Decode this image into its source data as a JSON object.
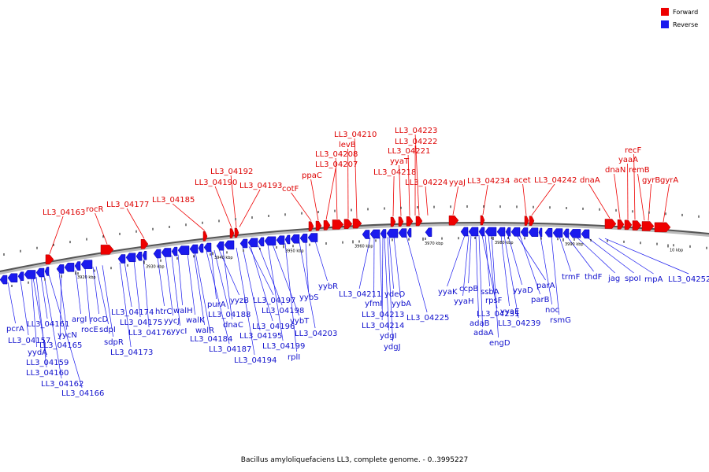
{
  "legend": [
    {
      "label": "Forward",
      "color": "#ee0000"
    },
    {
      "label": "Reverse",
      "color": "#1a1aee"
    }
  ],
  "footer": "Bacillus amyloliquefaciens LL3, complete genome. - 0..3995227",
  "colors": {
    "forward": "#ee0000",
    "reverse": "#1a1aee",
    "backbone": "#666666"
  },
  "ticks": [
    "3920 kbp",
    "3930 kbp",
    "3940 kbp",
    "3950 kbp",
    "3960 kbp",
    "3970 kbp",
    "3980 kbp",
    "3990 kbp",
    "10 kbp"
  ],
  "forward_labels": [
    "LL3_04163",
    "rocR",
    "LL3_04177",
    "LL3_04185",
    "LL3_04190",
    "LL3_04192",
    "LL3_04193",
    "cotF",
    "ppaC",
    "LL3_04207",
    "LL3_04208",
    "levB",
    "LL3_04210",
    "LL3_04218",
    "yyaT",
    "LL3_04221",
    "LL3_04222",
    "LL3_04223",
    "LL3_04224",
    "yyaJ",
    "LL3_04234",
    "acet",
    "LL3_04242",
    "dnaA",
    "dnaN",
    "yaaA",
    "recF",
    "remB",
    "gyrB",
    "gyrA"
  ],
  "reverse_labels": [
    "pcrA",
    "LL3_04157",
    "yydA",
    "LL3_04159",
    "LL3_04160",
    "LL3_04161",
    "LL3_04162",
    "LL3_04166",
    "yycN",
    "LL3_04165",
    "argI",
    "rocE",
    "rocD",
    "sdpI",
    "sdpR",
    "LL3_04173",
    "LL3_04174",
    "LL3_04175",
    "LL3_04176",
    "htrC",
    "yycJ",
    "yycI",
    "walH",
    "walK",
    "walR",
    "LL3_04184",
    "LL3_04187",
    "purA",
    "LL3_04188",
    "yyzB",
    "dnaC",
    "LL3_04194",
    "LL3_04197",
    "LL3_04198",
    "LL3_04196",
    "LL3_04195",
    "yybT",
    "LL3_04199",
    "rplI",
    "yybS",
    "LL3_04203",
    "yybR",
    "LL3_04211",
    "yfmI",
    "LL3_04213",
    "LL3_04214",
    "ydgI",
    "ydgJ",
    "ydeO",
    "yybA",
    "LL3_04225",
    "yyaK",
    "yyaH",
    "ccpB",
    "adaB",
    "adaA",
    "LL3_04231",
    "ssbA",
    "rpsF",
    "engD",
    "yyaE",
    "LL3_04239",
    "yyaD",
    "parA",
    "parB",
    "noc",
    "rsmG",
    "trmF",
    "thdF",
    "jag",
    "spoI",
    "rnpA",
    "LL3_04252"
  ]
}
